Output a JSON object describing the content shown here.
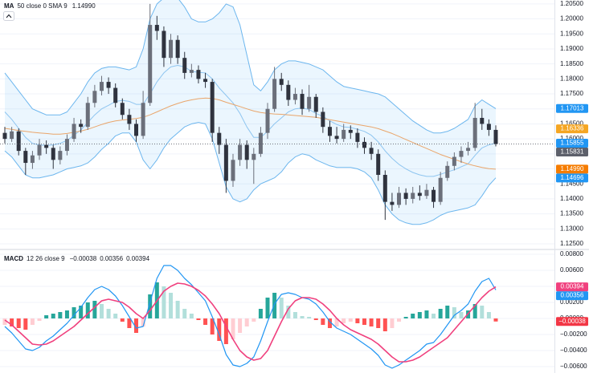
{
  "chart_data": [
    {
      "type": "candlestick",
      "title": "MA",
      "subtitle": "50 close 0 SMA 9",
      "ylim": [
        1.1234,
        1.2063
      ],
      "grid": true,
      "yticks": [
        {
          "value": 1.205,
          "label": "1.20500"
        },
        {
          "value": 1.2,
          "label": "1.20000"
        },
        {
          "value": 1.195,
          "label": "1.19500"
        },
        {
          "value": 1.19,
          "label": "1.19000"
        },
        {
          "value": 1.185,
          "label": "1.18500"
        },
        {
          "value": 1.18,
          "label": "1.18000"
        },
        {
          "value": 1.175,
          "label": "1.17500"
        },
        {
          "value": 1.17,
          "label": "1.17000"
        },
        {
          "value": 1.165,
          "label": "1.16500"
        },
        {
          "value": 1.16,
          "label": "1.16000"
        },
        {
          "value": 1.155,
          "label": "1.15500"
        },
        {
          "value": 1.15,
          "label": "1.15000"
        },
        {
          "value": 1.145,
          "label": "1.14500"
        },
        {
          "value": 1.14,
          "label": "1.14000"
        },
        {
          "value": 1.135,
          "label": "1.13500"
        },
        {
          "value": 1.13,
          "label": "1.13000"
        },
        {
          "value": 1.125,
          "label": "1.12500"
        }
      ],
      "up_color": "#6b6f7a",
      "down_color": "#2f333e",
      "ohlc": [
        [
          1.162,
          1.164,
          1.1585,
          1.16
        ],
        [
          1.16,
          1.164,
          1.159,
          1.1625
        ],
        [
          1.1625,
          1.1635,
          1.1545,
          1.156
        ],
        [
          1.156,
          1.157,
          1.148,
          1.152
        ],
        [
          1.152,
          1.156,
          1.15,
          1.1545
        ],
        [
          1.1545,
          1.16,
          1.153,
          1.158
        ],
        [
          1.158,
          1.1595,
          1.155,
          1.157
        ],
        [
          1.157,
          1.158,
          1.15,
          1.153
        ],
        [
          1.153,
          1.1575,
          1.1515,
          1.156
        ],
        [
          1.156,
          1.1615,
          1.1545,
          1.16
        ],
        [
          1.16,
          1.167,
          1.159,
          1.165
        ],
        [
          1.165,
          1.1665,
          1.162,
          1.164
        ],
        [
          1.164,
          1.174,
          1.163,
          1.172
        ],
        [
          1.172,
          1.178,
          1.1705,
          1.176
        ],
        [
          1.176,
          1.181,
          1.1745,
          1.179
        ],
        [
          1.179,
          1.1805,
          1.175,
          1.177
        ],
        [
          1.177,
          1.1785,
          1.1705,
          1.172
        ],
        [
          1.172,
          1.1735,
          1.1665,
          1.168
        ],
        [
          1.168,
          1.17,
          1.163,
          1.165
        ],
        [
          1.165,
          1.1665,
          1.159,
          1.161
        ],
        [
          1.161,
          1.176,
          1.16,
          1.172
        ],
        [
          1.172,
          1.205,
          1.171,
          1.198
        ],
        [
          1.198,
          1.201,
          1.193,
          1.196
        ],
        [
          1.196,
          1.1975,
          1.184,
          1.187
        ],
        [
          1.187,
          1.195,
          1.185,
          1.193
        ],
        [
          1.193,
          1.1945,
          1.185,
          1.187
        ],
        [
          1.187,
          1.189,
          1.18,
          1.182
        ],
        [
          1.182,
          1.185,
          1.1805,
          1.183
        ],
        [
          1.183,
          1.1845,
          1.1785,
          1.18
        ],
        [
          1.18,
          1.182,
          1.177,
          1.179
        ],
        [
          1.179,
          1.18,
          1.159,
          1.162
        ],
        [
          1.162,
          1.164,
          1.155,
          1.158
        ],
        [
          1.158,
          1.16,
          1.142,
          1.146
        ],
        [
          1.146,
          1.155,
          1.144,
          1.153
        ],
        [
          1.153,
          1.16,
          1.151,
          1.158
        ],
        [
          1.158,
          1.1595,
          1.15,
          1.153
        ],
        [
          1.153,
          1.157,
          1.145,
          1.155
        ],
        [
          1.155,
          1.164,
          1.154,
          1.162
        ],
        [
          1.162,
          1.172,
          1.16,
          1.17
        ],
        [
          1.17,
          1.184,
          1.169,
          1.18
        ],
        [
          1.18,
          1.182,
          1.176,
          1.178
        ],
        [
          1.178,
          1.1795,
          1.171,
          1.173
        ],
        [
          1.173,
          1.177,
          1.1715,
          1.175
        ],
        [
          1.175,
          1.1765,
          1.168,
          1.17
        ],
        [
          1.17,
          1.178,
          1.169,
          1.174
        ],
        [
          1.174,
          1.175,
          1.167,
          1.169
        ],
        [
          1.169,
          1.1705,
          1.162,
          1.164
        ],
        [
          1.164,
          1.166,
          1.159,
          1.161
        ],
        [
          1.161,
          1.164,
          1.1585,
          1.16
        ],
        [
          1.16,
          1.165,
          1.159,
          1.163
        ],
        [
          1.163,
          1.1645,
          1.16,
          1.162
        ],
        [
          1.162,
          1.1635,
          1.157,
          1.159
        ],
        [
          1.159,
          1.1605,
          1.155,
          1.157
        ],
        [
          1.157,
          1.159,
          1.153,
          1.155
        ],
        [
          1.155,
          1.1565,
          1.146,
          1.148
        ],
        [
          1.148,
          1.1495,
          1.133,
          1.139
        ],
        [
          1.139,
          1.142,
          1.136,
          1.138
        ],
        [
          1.138,
          1.144,
          1.137,
          1.142
        ],
        [
          1.142,
          1.1435,
          1.138,
          1.14
        ],
        [
          1.14,
          1.144,
          1.1385,
          1.142
        ],
        [
          1.142,
          1.1445,
          1.1395,
          1.141
        ],
        [
          1.141,
          1.145,
          1.14,
          1.143
        ],
        [
          1.143,
          1.144,
          1.137,
          1.139
        ],
        [
          1.139,
          1.149,
          1.138,
          1.147
        ],
        [
          1.147,
          1.1525,
          1.146,
          1.151
        ],
        [
          1.151,
          1.1555,
          1.1495,
          1.154
        ],
        [
          1.154,
          1.1575,
          1.152,
          1.156
        ],
        [
          1.156,
          1.159,
          1.1545,
          1.157
        ],
        [
          1.157,
          1.172,
          1.156,
          1.167
        ],
        [
          1.167,
          1.17,
          1.163,
          1.165
        ],
        [
          1.165,
          1.1665,
          1.161,
          1.163
        ],
        [
          1.163,
          1.1645,
          1.1575,
          1.1583
        ]
      ],
      "bollinger": {
        "color": "#6cb6ee",
        "basis_color": "#8ec5f0",
        "fill": "rgba(33,150,243,0.09)",
        "upper": [
          1.182,
          1.179,
          1.176,
          1.173,
          1.17,
          1.169,
          1.168,
          1.168,
          1.168,
          1.169,
          1.172,
          1.175,
          1.179,
          1.182,
          1.1835,
          1.184,
          1.184,
          1.1835,
          1.183,
          1.184,
          1.19,
          1.2,
          1.205,
          1.207,
          1.208,
          1.207,
          1.204,
          1.2,
          1.199,
          1.199,
          1.2,
          1.202,
          1.205,
          1.204,
          1.198,
          1.188,
          1.178,
          1.176,
          1.179,
          1.183,
          1.185,
          1.186,
          1.186,
          1.1855,
          1.185,
          1.184,
          1.183,
          1.181,
          1.179,
          1.1775,
          1.177,
          1.1765,
          1.176,
          1.1755,
          1.175,
          1.174,
          1.172,
          1.17,
          1.168,
          1.166,
          1.1645,
          1.163,
          1.162,
          1.162,
          1.1625,
          1.1635,
          1.165,
          1.1665,
          1.171,
          1.173,
          1.1715,
          1.1701
        ],
        "basis": [
          1.169,
          1.1665,
          1.1635,
          1.1605,
          1.1585,
          1.158,
          1.1578,
          1.158,
          1.1585,
          1.1595,
          1.1612,
          1.163,
          1.1655,
          1.168,
          1.17,
          1.1712,
          1.1725,
          1.1728,
          1.1725,
          1.1715,
          1.1715,
          1.175,
          1.179,
          1.182,
          1.184,
          1.1845,
          1.184,
          1.1825,
          1.1822,
          1.182,
          1.18,
          1.177,
          1.1745,
          1.172,
          1.1685,
          1.164,
          1.1605,
          1.1605,
          1.1625,
          1.165,
          1.167,
          1.169,
          1.17,
          1.1703,
          1.1698,
          1.1685,
          1.1675,
          1.166,
          1.1648,
          1.164,
          1.1638,
          1.1632,
          1.1625,
          1.1612,
          1.159,
          1.156,
          1.1535,
          1.1515,
          1.15,
          1.1488,
          1.148,
          1.1475,
          1.1475,
          1.1482,
          1.149,
          1.1497,
          1.1507,
          1.1517,
          1.1545,
          1.157,
          1.158,
          1.1586
        ],
        "lower": [
          1.156,
          1.154,
          1.151,
          1.148,
          1.147,
          1.147,
          1.1475,
          1.148,
          1.149,
          1.15,
          1.1505,
          1.151,
          1.152,
          1.154,
          1.1565,
          1.1585,
          1.161,
          1.162,
          1.162,
          1.159,
          1.153,
          1.15,
          1.153,
          1.157,
          1.16,
          1.162,
          1.164,
          1.165,
          1.1655,
          1.165,
          1.16,
          1.152,
          1.144,
          1.14,
          1.139,
          1.14,
          1.143,
          1.145,
          1.146,
          1.147,
          1.149,
          1.152,
          1.154,
          1.155,
          1.1545,
          1.153,
          1.152,
          1.151,
          1.1505,
          1.1505,
          1.1505,
          1.15,
          1.149,
          1.147,
          1.143,
          1.138,
          1.135,
          1.133,
          1.132,
          1.1315,
          1.1315,
          1.132,
          1.133,
          1.1345,
          1.1355,
          1.136,
          1.1365,
          1.137,
          1.138,
          1.141,
          1.1445,
          1.147
        ]
      },
      "ma": {
        "color": "#eaa56a",
        "values": [
          1.1635,
          1.1632,
          1.1628,
          1.1625,
          1.1622,
          1.162,
          1.1618,
          1.1616,
          1.1616,
          1.1618,
          1.1622,
          1.1626,
          1.1632,
          1.164,
          1.1648,
          1.1655,
          1.166,
          1.1663,
          1.1665,
          1.1668,
          1.1672,
          1.168,
          1.169,
          1.17,
          1.171,
          1.1718,
          1.1725,
          1.173,
          1.1734,
          1.1736,
          1.1735,
          1.173,
          1.1722,
          1.1715,
          1.1708,
          1.17,
          1.1693,
          1.1688,
          1.1685,
          1.1683,
          1.1682,
          1.168,
          1.1678,
          1.1676,
          1.1674,
          1.1672,
          1.1668,
          1.1664,
          1.166,
          1.1656,
          1.1652,
          1.1648,
          1.1644,
          1.164,
          1.1634,
          1.1626,
          1.1618,
          1.1608,
          1.1598,
          1.1588,
          1.1578,
          1.1568,
          1.1558,
          1.1548,
          1.154,
          1.1532,
          1.1524,
          1.1516,
          1.151,
          1.1505,
          1.1501,
          1.1499
        ]
      },
      "price_labels": [
        {
          "value": 1.17013,
          "label": "1.17013",
          "color": "#2196f3"
        },
        {
          "value": 1.16336,
          "label": "1.16336",
          "color": "#f5a623"
        },
        {
          "value": 1.15855,
          "label": "1.15855",
          "color": "#2196f3"
        },
        {
          "value": 1.15831,
          "label": "1.15831",
          "color": "#5d606b",
          "line": true
        },
        {
          "value": 1.1499,
          "label": "1.14990",
          "color": "#f57c00",
          "legend": true
        },
        {
          "value": 1.14696,
          "label": "1.14696",
          "color": "#2196f3"
        }
      ]
    },
    {
      "type": "macd",
      "title": "MACD",
      "subtitle": "12 26 close 9",
      "ylim": [
        -0.0068,
        0.0085
      ],
      "grid": true,
      "yticks": [
        {
          "value": 0.008,
          "label": "0.00800"
        },
        {
          "value": 0.006,
          "label": "0.00600"
        },
        {
          "value": 0.004,
          "label": "0.00400"
        },
        {
          "value": 0.002,
          "label": "0.00200"
        },
        {
          "value": 0,
          "label": "0.00000"
        },
        {
          "value": -0.002,
          "label": "−0.00200"
        },
        {
          "value": -0.004,
          "label": "−0.00400"
        },
        {
          "value": -0.006,
          "label": "−0.00600"
        }
      ],
      "histogram": {
        "colors": {
          "grow_above": "#26a69a",
          "fall_above": "#b2dfdb",
          "grow_below": "#ffcdd2",
          "fall_below": "#ff5252"
        },
        "values": [
          -0.0008,
          -0.001,
          -0.0012,
          -0.0014,
          -0.0008,
          -0.0003,
          0.0004,
          0.0006,
          0.0008,
          0.001,
          0.0014,
          0.0016,
          0.002,
          0.0022,
          0.0018,
          0.0012,
          0.0006,
          -0.0004,
          -0.0012,
          -0.0018,
          -0.001,
          0.003,
          0.0045,
          0.004,
          0.0032,
          0.0022,
          0.0012,
          0.0006,
          -0.0002,
          -0.0008,
          -0.002,
          -0.0028,
          -0.0032,
          -0.0026,
          -0.0018,
          -0.001,
          -0.0004,
          0.0012,
          0.0026,
          0.0032,
          0.0026,
          0.0016,
          0.0008,
          0.0003,
          0.0002,
          -0.0002,
          -0.0008,
          -0.0012,
          -0.001,
          -0.0006,
          -0.0004,
          -0.0006,
          -0.0008,
          -0.001,
          -0.0012,
          -0.0016,
          -0.0012,
          -0.0004,
          0.0002,
          0.0006,
          0.0008,
          0.001,
          0.0006,
          0.0012,
          0.0016,
          0.0014,
          0.0008,
          0.001,
          0.0018,
          0.0016,
          0.0008,
          -0.00038
        ]
      },
      "macd": {
        "color": "#2196f3",
        "values": [
          -0.001,
          -0.0018,
          -0.0028,
          -0.0038,
          -0.004,
          -0.0036,
          -0.0028,
          -0.0022,
          -0.0014,
          -0.0006,
          0.0004,
          0.0014,
          0.0026,
          0.0036,
          0.004,
          0.0036,
          0.0028,
          0.0016,
          0.0002,
          -0.0012,
          -0.001,
          0.002,
          0.005,
          0.0066,
          0.0066,
          0.006,
          0.005,
          0.0042,
          0.0032,
          0.0022,
          0.0002,
          -0.002,
          -0.0045,
          -0.0058,
          -0.006,
          -0.0056,
          -0.0048,
          -0.0028,
          -0.0004,
          0.0018,
          0.003,
          0.0032,
          0.003,
          0.0026,
          0.0024,
          0.0018,
          0.0008,
          -0.0004,
          -0.0012,
          -0.0016,
          -0.002,
          -0.0026,
          -0.0032,
          -0.0038,
          -0.0046,
          -0.0058,
          -0.0062,
          -0.0058,
          -0.0052,
          -0.0046,
          -0.004,
          -0.0032,
          -0.003,
          -0.002,
          -0.0008,
          0.0004,
          0.001,
          0.0018,
          0.0034,
          0.0046,
          0.005,
          0.00356
        ]
      },
      "signal": {
        "color": "#f0407e",
        "values": [
          -0.0002,
          -0.0008,
          -0.0016,
          -0.0024,
          -0.0032,
          -0.0033,
          -0.0032,
          -0.0028,
          -0.0022,
          -0.0016,
          -0.001,
          -0.0002,
          0.0006,
          0.0014,
          0.0022,
          0.0024,
          0.0022,
          0.002,
          0.0014,
          0.0006,
          0.0,
          0.001,
          0.0022,
          0.0034,
          0.004,
          0.0044,
          0.0043,
          0.004,
          0.0035,
          0.0028,
          0.0018,
          0.0006,
          -0.001,
          -0.0026,
          -0.004,
          -0.0048,
          -0.0052,
          -0.005,
          -0.004,
          -0.0022,
          -0.0004,
          0.0012,
          0.0022,
          0.0026,
          0.0026,
          0.0024,
          0.0018,
          0.001,
          0.0,
          -0.0008,
          -0.0014,
          -0.0018,
          -0.0022,
          -0.0026,
          -0.0032,
          -0.004,
          -0.0048,
          -0.0054,
          -0.0054,
          -0.0052,
          -0.0048,
          -0.0042,
          -0.0036,
          -0.003,
          -0.0024,
          -0.0014,
          -0.0004,
          0.0006,
          0.0016,
          0.0026,
          0.0034,
          0.00394
        ]
      },
      "price_labels": [
        {
          "value": -0.00038,
          "label": "−0.00038",
          "color": "#f23645",
          "legend": true
        },
        {
          "value": 0.00356,
          "label": "0.00356",
          "color": "#2196f3",
          "legend": true
        },
        {
          "value": 0.00394,
          "label": "0.00394",
          "color": "#f0407e",
          "legend": true
        }
      ]
    }
  ]
}
